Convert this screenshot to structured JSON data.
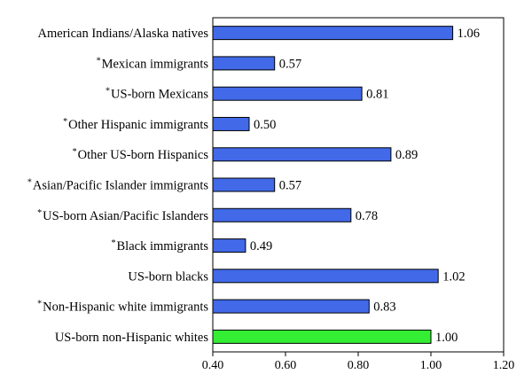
{
  "chart_data": {
    "type": "bar",
    "orientation": "horizontal",
    "categories": [
      {
        "label": "American Indians/Alaska natives",
        "marker": ""
      },
      {
        "label": "Mexican immigrants",
        "marker": "*"
      },
      {
        "label": "US-born Mexicans",
        "marker": "*"
      },
      {
        "label": "Other Hispanic immigrants",
        "marker": "*"
      },
      {
        "label": "Other US-born Hispanics",
        "marker": "*"
      },
      {
        "label": "Asian/Pacific Islander immigrants",
        "marker": "*"
      },
      {
        "label": "US-born Asian/Pacific Islanders",
        "marker": "*"
      },
      {
        "label": "Black immigrants",
        "marker": "*"
      },
      {
        "label": "US-born blacks",
        "marker": ""
      },
      {
        "label": "Non-Hispanic white immigrants",
        "marker": "*"
      },
      {
        "label": "US-born non-Hispanic whites",
        "marker": ""
      }
    ],
    "values": [
      1.06,
      0.57,
      0.81,
      0.5,
      0.89,
      0.57,
      0.78,
      0.49,
      1.02,
      0.83,
      1.0
    ],
    "value_labels": [
      "1.06",
      "0.57",
      "0.81",
      "0.50",
      "0.89",
      "0.57",
      "0.78",
      "0.49",
      "1.02",
      "0.83",
      "1.00"
    ],
    "xlim": [
      0.4,
      1.2
    ],
    "xticks": [
      0.4,
      0.6,
      0.8,
      1.0,
      1.2
    ],
    "xtick_labels": [
      "0.40",
      "0.60",
      "0.80",
      "1.00",
      "1.20"
    ],
    "reference_category": "US-born non-Hispanic whites",
    "bar_color": "#4169e8",
    "reference_bar_color": "#33ee33",
    "bar_edge_color": "#000000",
    "grid": false,
    "title": "",
    "xlabel": "",
    "ylabel": ""
  }
}
